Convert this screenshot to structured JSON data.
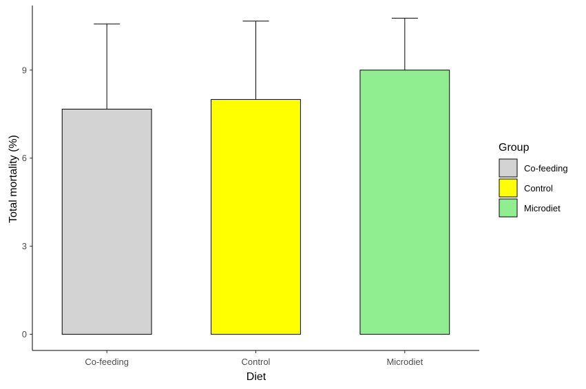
{
  "chart_data": {
    "type": "bar",
    "title": "",
    "xlabel": "Diet",
    "ylabel": "Total mortality (%)",
    "categories": [
      "Co-feeding",
      "Control",
      "Microdiet"
    ],
    "values": [
      7.67,
      8.0,
      9.0
    ],
    "error_upper": [
      10.57,
      10.67,
      10.77
    ],
    "colors": [
      "#d3d3d3",
      "#ffff00",
      "#90ee90"
    ],
    "ylim": [
      -0.55,
      11.2
    ],
    "yticks": [
      0,
      3,
      6,
      9
    ],
    "grid": false,
    "legend": {
      "title": "Group",
      "position": "right",
      "entries": [
        "Co-feeding",
        "Control",
        "Microdiet"
      ]
    }
  }
}
